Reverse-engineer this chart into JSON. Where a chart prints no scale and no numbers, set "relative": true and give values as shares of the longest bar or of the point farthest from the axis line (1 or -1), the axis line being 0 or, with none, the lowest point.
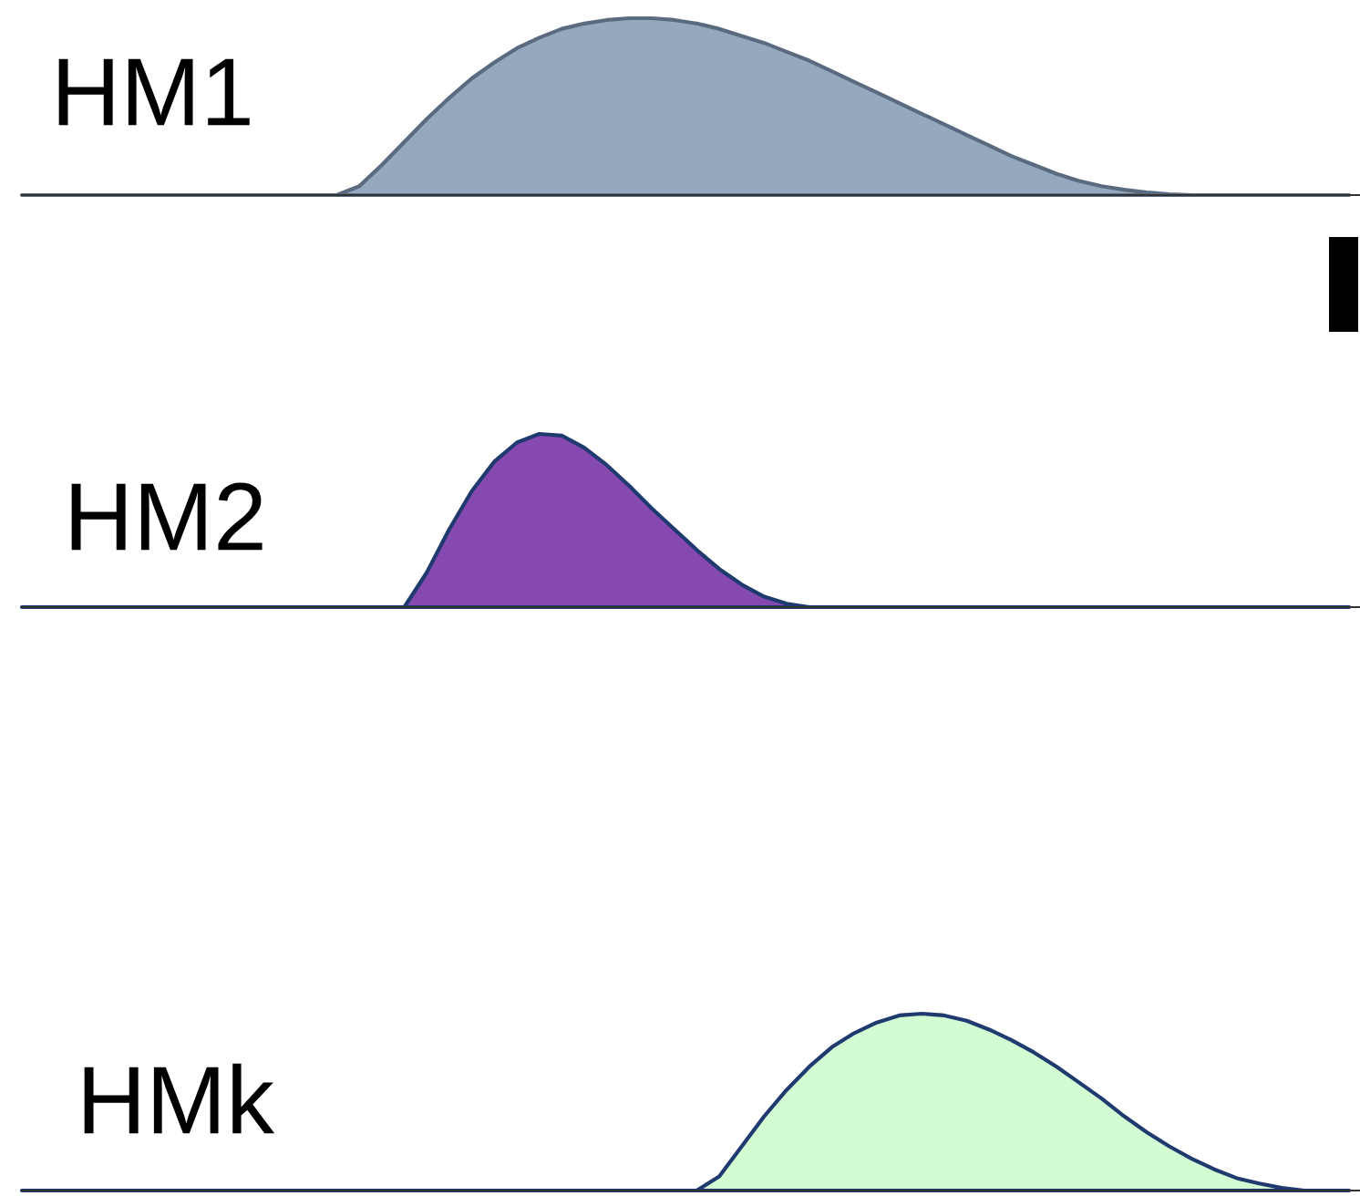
{
  "chart_data": [
    {
      "type": "area",
      "relative": true,
      "categories": [
        null,
        null,
        null,
        null,
        null,
        null,
        null,
        null,
        null,
        null,
        null,
        null,
        null,
        null,
        null,
        null,
        null,
        null,
        null,
        null,
        null,
        null,
        null,
        null,
        null,
        null,
        null,
        null,
        null,
        null,
        null,
        null,
        null,
        null,
        null,
        null,
        null,
        null,
        null,
        null,
        null,
        null,
        null,
        null,
        null,
        null,
        null,
        null,
        null,
        null,
        null,
        null,
        null,
        null,
        null,
        null,
        null,
        null,
        null,
        null
      ],
      "legend": false,
      "series": [
        {
          "name": "HM1",
          "color": "#94a8be",
          "values": [
            0,
            0,
            0,
            0,
            0,
            0,
            0,
            0,
            0,
            0,
            0,
            0,
            0,
            0,
            0,
            0.05,
            0.17,
            0.3,
            0.43,
            0.55,
            0.66,
            0.75,
            0.83,
            0.89,
            0.94,
            0.97,
            0.99,
            1.0,
            1.0,
            0.99,
            0.97,
            0.94,
            0.9,
            0.86,
            0.81,
            0.76,
            0.7,
            0.64,
            0.58,
            0.52,
            0.46,
            0.4,
            0.34,
            0.28,
            0.22,
            0.17,
            0.12,
            0.08,
            0.05,
            0.03,
            0.015,
            0.005,
            0,
            0,
            0,
            0,
            0,
            0,
            0,
            0
          ]
        }
      ]
    },
    {
      "type": "area",
      "relative": true,
      "categories": [
        null,
        null,
        null,
        null,
        null,
        null,
        null,
        null,
        null,
        null,
        null,
        null,
        null,
        null,
        null,
        null,
        null,
        null,
        null,
        null,
        null,
        null,
        null,
        null,
        null,
        null,
        null,
        null,
        null,
        null,
        null,
        null,
        null,
        null,
        null,
        null,
        null,
        null,
        null,
        null,
        null,
        null,
        null,
        null,
        null,
        null,
        null,
        null,
        null,
        null,
        null,
        null,
        null,
        null,
        null,
        null,
        null,
        null,
        null,
        null
      ],
      "legend": false,
      "series": [
        {
          "name": "HM2",
          "color": "#8549b0",
          "values": [
            0,
            0,
            0,
            0,
            0,
            0,
            0,
            0,
            0,
            0,
            0,
            0,
            0,
            0,
            0,
            0,
            0,
            0,
            0.2,
            0.45,
            0.67,
            0.84,
            0.95,
            1.0,
            0.99,
            0.92,
            0.82,
            0.7,
            0.57,
            0.45,
            0.33,
            0.22,
            0.13,
            0.06,
            0.02,
            0,
            0,
            0,
            0,
            0,
            0,
            0,
            0,
            0,
            0,
            0,
            0,
            0,
            0,
            0,
            0,
            0,
            0,
            0,
            0,
            0,
            0,
            0,
            0,
            0
          ]
        }
      ]
    },
    {
      "type": "area",
      "relative": true,
      "categories": [
        null,
        null,
        null,
        null,
        null,
        null,
        null,
        null,
        null,
        null,
        null,
        null,
        null,
        null,
        null,
        null,
        null,
        null,
        null,
        null,
        null,
        null,
        null,
        null,
        null,
        null,
        null,
        null,
        null,
        null,
        null,
        null,
        null,
        null,
        null,
        null,
        null,
        null,
        null,
        null,
        null,
        null,
        null,
        null,
        null,
        null,
        null,
        null,
        null,
        null,
        null,
        null,
        null,
        null,
        null,
        null,
        null,
        null,
        null,
        null
      ],
      "legend": false,
      "series": [
        {
          "name": "HMk",
          "color": "#d3fcd3",
          "values": [
            0,
            0,
            0,
            0,
            0,
            0,
            0,
            0,
            0,
            0,
            0,
            0,
            0,
            0,
            0,
            0,
            0,
            0,
            0,
            0,
            0,
            0,
            0,
            0,
            0,
            0,
            0,
            0,
            0,
            0,
            0,
            0.08,
            0.25,
            0.42,
            0.57,
            0.7,
            0.81,
            0.89,
            0.95,
            0.99,
            1.0,
            0.99,
            0.96,
            0.91,
            0.85,
            0.78,
            0.7,
            0.61,
            0.52,
            0.42,
            0.33,
            0.25,
            0.18,
            0.12,
            0.07,
            0.04,
            0.015,
            0,
            0,
            0
          ]
        }
      ]
    }
  ]
}
